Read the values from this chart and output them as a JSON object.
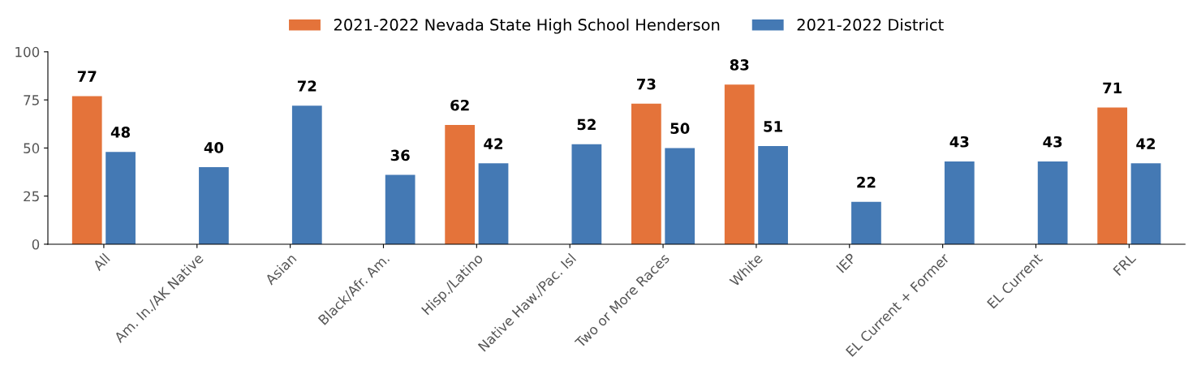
{
  "chart_data": {
    "type": "bar",
    "categories": [
      "All",
      "Am. In./AK Native",
      "Asian",
      "Black/Afr. Am.",
      "Hisp./Latino",
      "Native Haw./Pac. Isl",
      "Two or More Races",
      "White",
      "IEP",
      "EL Current + Former",
      "EL Current",
      "FRL"
    ],
    "series": [
      {
        "name": "2021-2022 Nevada State High School Henderson",
        "color": "#e4733a",
        "values": [
          77,
          null,
          null,
          null,
          62,
          null,
          73,
          83,
          null,
          null,
          null,
          71
        ]
      },
      {
        "name": "2021-2022 District",
        "color": "#4479b4",
        "values": [
          48,
          40,
          72,
          36,
          42,
          52,
          50,
          51,
          22,
          43,
          43,
          42
        ]
      }
    ],
    "ylim": [
      0,
      100
    ],
    "yticks": [
      0,
      25,
      50,
      75,
      100
    ],
    "grid": false,
    "legend": "top",
    "data_labels": true
  }
}
